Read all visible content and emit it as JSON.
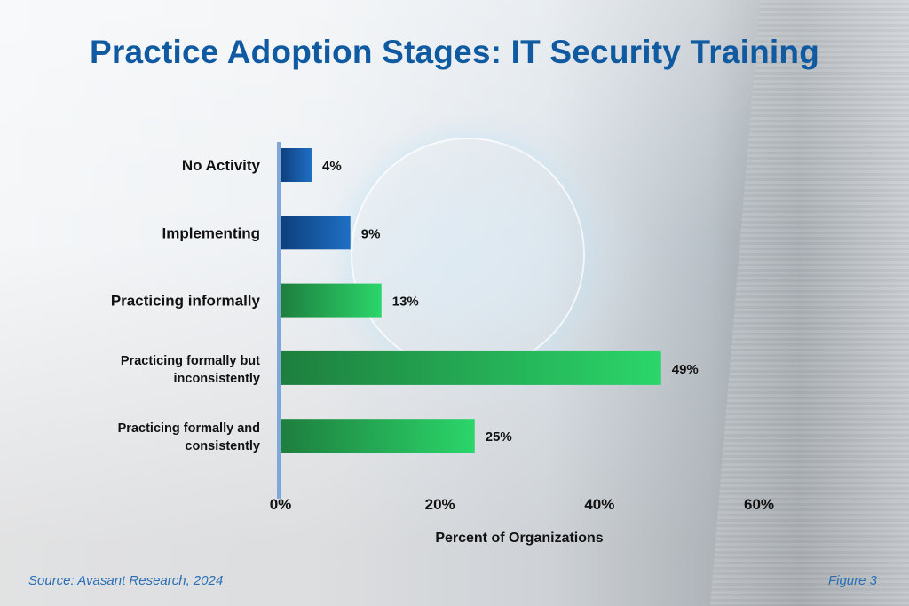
{
  "chart_data": {
    "type": "bar",
    "orientation": "horizontal",
    "title": "Practice Adoption Stages: IT Security Training",
    "categories": [
      "No Activity",
      "Implementing",
      "Practicing informally",
      "Practicing formally but inconsistently",
      "Practicing formally and consistently"
    ],
    "category_lines": [
      [
        "No Activity"
      ],
      [
        "Implementing"
      ],
      [
        "Practicing informally"
      ],
      [
        "Practicing formally but",
        "inconsistently"
      ],
      [
        "Practicing formally and",
        "consistently"
      ]
    ],
    "values": [
      4,
      9,
      13,
      49,
      25
    ],
    "value_labels": [
      "4%",
      "9%",
      "13%",
      "49%",
      "25%"
    ],
    "bar_colors": [
      "blue",
      "blue",
      "green",
      "green",
      "green"
    ],
    "xlabel": "Percent of Organizations",
    "xlim": [
      0,
      60
    ],
    "xticks": [
      "0%",
      "20%",
      "40%",
      "60%"
    ],
    "grid": false
  },
  "colors": {
    "title": "#0f5aa0",
    "blue_dark": "#0d3f7c",
    "blue_light": "#1f6fc4",
    "green_dark": "#1e7e3e",
    "green_light": "#2bd66a",
    "source": "#2a6fb5"
  },
  "footer": {
    "source": "Source: Avasant Research, 2024",
    "figure": "Figure 3"
  }
}
